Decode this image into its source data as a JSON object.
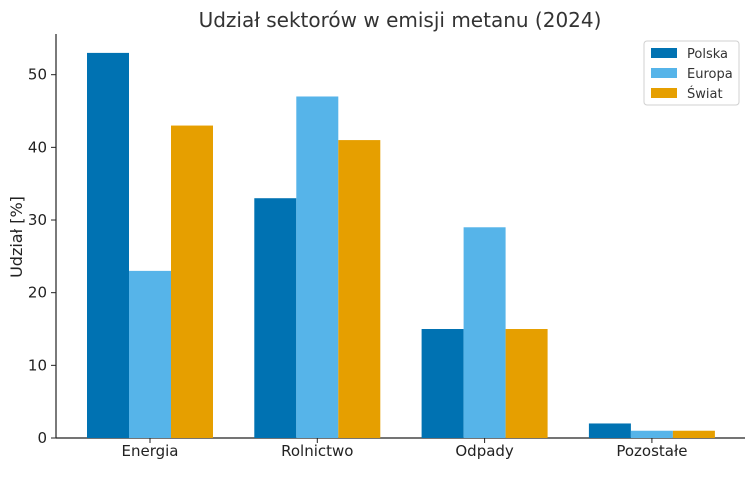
{
  "chart_data": {
    "type": "bar",
    "title": "Udział sektorów w emisji metanu (2024)",
    "xlabel": "",
    "ylabel": "Udział [%]",
    "categories": [
      "Energia",
      "Rolnictwo",
      "Odpady",
      "Pozostałe"
    ],
    "series": [
      {
        "name": "Polska",
        "color": "#0072b2",
        "values": [
          53,
          33,
          15,
          2
        ]
      },
      {
        "name": "Europa",
        "color": "#56b4e9",
        "values": [
          23,
          47,
          29,
          1
        ]
      },
      {
        "name": "Świat",
        "color": "#e69f00",
        "values": [
          43,
          41,
          15,
          1
        ]
      }
    ],
    "ylim": [
      0,
      55.6
    ],
    "yticks": [
      0,
      10,
      20,
      30,
      40,
      50
    ],
    "grid": false,
    "legend_position": "top-right"
  }
}
